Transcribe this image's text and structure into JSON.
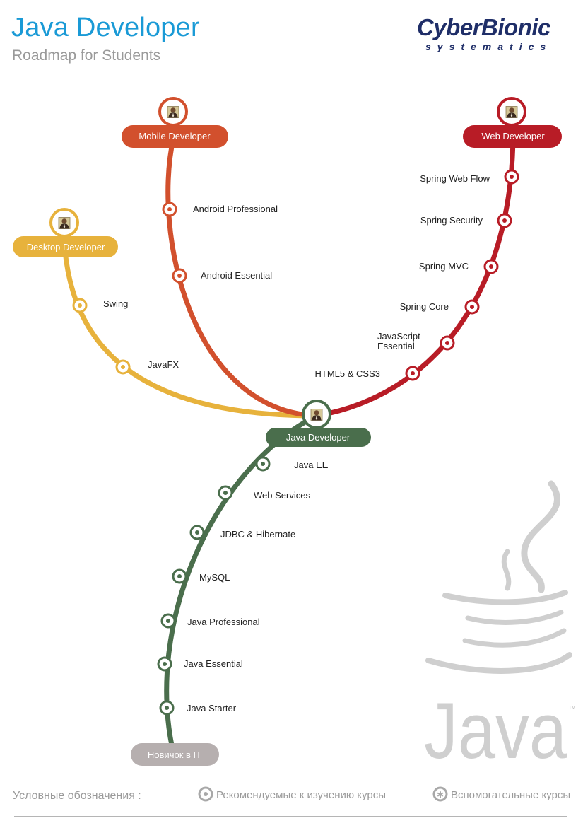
{
  "header": {
    "title": "Java Developer",
    "subtitle": "Roadmap for Students"
  },
  "logo": {
    "main": "CyberBionic",
    "sub": "systematics"
  },
  "colors": {
    "title": "#1a9ad6",
    "mobile": "#d2502d",
    "web": "#b81c26",
    "desktop": "#e7b23c",
    "java": "#4a6e4c",
    "start": "#b6afaf",
    "java_logo": "#cfcfcf"
  },
  "routes": {
    "web": {
      "terminus": "Web Developer",
      "stations": [
        "HTML5 & CSS3",
        "JavaScript Essential",
        "Spring Core",
        "Spring MVC",
        "Spring Security",
        "Spring Web Flow"
      ]
    },
    "mobile": {
      "terminus": "Mobile Developer",
      "stations": [
        "Android Essential",
        "Android Professional"
      ]
    },
    "desktop": {
      "terminus": "Desktop Developer",
      "stations": [
        "JavaFX",
        "Swing"
      ]
    },
    "core": {
      "hub": "Java Developer",
      "start": "Новичок в IT",
      "stations": [
        "Java Starter",
        "Java Essential",
        "Java Professional",
        "MySQL",
        "JDBC & Hibernate",
        "Web Services",
        "Java EE"
      ]
    }
  },
  "java_logo": {
    "text": "Java",
    "tm": "™"
  },
  "legend": {
    "title": "Условные обозначения :",
    "recommended": "Рекомендуемые к изучению курсы",
    "auxiliary": "Вспомогательные курсы"
  }
}
